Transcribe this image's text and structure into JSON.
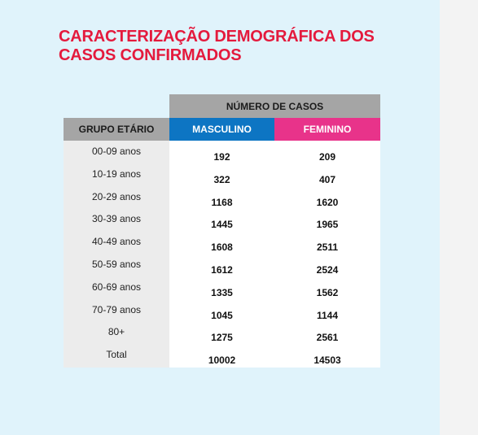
{
  "title_line1": "CARACTERIZAÇÃO DEMOGRÁFICA DOS",
  "title_line2": "CASOS CONFIRMADOS",
  "table": {
    "header_top": "NÚMERO DE CASOS",
    "header_group": "GRUPO ETÁRIO",
    "header_masc": "MASCULINO",
    "header_fem": "FEMININO",
    "rows": [
      {
        "age": "00-09 anos",
        "masc": "192",
        "fem": "209"
      },
      {
        "age": "10-19 anos",
        "masc": "322",
        "fem": "407"
      },
      {
        "age": "20-29 anos",
        "masc": "1168",
        "fem": "1620"
      },
      {
        "age": "30-39 anos",
        "masc": "1445",
        "fem": "1965"
      },
      {
        "age": "40-49 anos",
        "masc": "1608",
        "fem": "2511"
      },
      {
        "age": "50-59 anos",
        "masc": "1612",
        "fem": "2524"
      },
      {
        "age": "60-69 anos",
        "masc": "1335",
        "fem": "1562"
      },
      {
        "age": "70-79 anos",
        "masc": "1045",
        "fem": "1144"
      },
      {
        "age": "80+",
        "masc": "1275",
        "fem": "2561"
      },
      {
        "age": "Total",
        "masc": "10002",
        "fem": "14503"
      }
    ]
  },
  "colors": {
    "title": "#e41a3d",
    "header_gray": "#a5a5a5",
    "masculino": "#0d75c3",
    "feminino": "#e8338a",
    "background": "#e0f3fb"
  }
}
